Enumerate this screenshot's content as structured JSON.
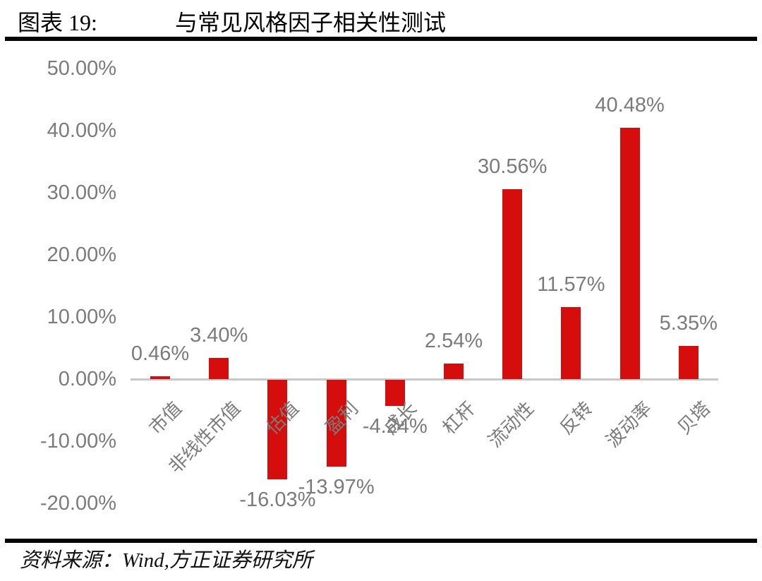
{
  "header": {
    "figure_label": "图表 19:",
    "title": "与常见风格因子相关性测试"
  },
  "footer": {
    "source_label": "资料来源：",
    "source_text": "Wind,方正证券研究所"
  },
  "chart_data": {
    "type": "bar",
    "title": "与常见风格因子相关性测试",
    "categories": [
      "市值",
      "非线性市值",
      "估值",
      "盈利",
      "成长",
      "杠杆",
      "流动性",
      "反转",
      "波动率",
      "贝塔"
    ],
    "values": [
      0.46,
      3.4,
      -16.03,
      -13.97,
      -4.24,
      2.54,
      30.56,
      11.57,
      40.48,
      5.35
    ],
    "data_labels": [
      "0.46%",
      "3.40%",
      "-16.03%",
      "-13.97%",
      "-4.24%",
      "2.54%",
      "30.56%",
      "11.57%",
      "40.48%",
      "5.35%"
    ],
    "unit": "%",
    "y_axis": {
      "tick_labels": [
        "50.00%",
        "40.00%",
        "30.00%",
        "20.00%",
        "10.00%",
        "0.00%",
        "-10.00%",
        "-20.00%"
      ],
      "tick_values": [
        50,
        40,
        30,
        20,
        10,
        0,
        -10,
        -20
      ],
      "range": [
        -20,
        50
      ]
    },
    "grid": false,
    "legend": false,
    "colors": {
      "bar": "#d60d0d",
      "muted_text": "#7b7b7b",
      "axis_line": "#c8c8c8"
    }
  }
}
